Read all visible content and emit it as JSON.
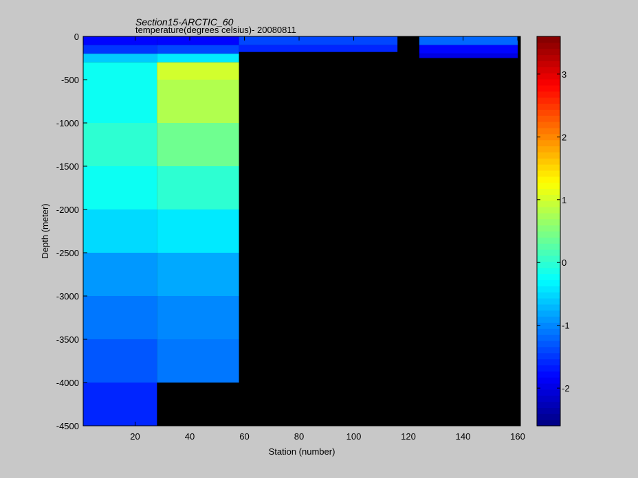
{
  "chart_data": {
    "type": "heatmap",
    "title": "Section15-ARCTIC_60",
    "subtitle": "temperature(degrees  celsius)- 20080811",
    "xlabel": "Station (number)",
    "ylabel": "Depth (meter)",
    "xlim": [
      1,
      161
    ],
    "ylim": [
      -4500,
      0
    ],
    "x_ticks": [
      "20",
      "40",
      "60",
      "80",
      "100",
      "120",
      "140",
      "160"
    ],
    "y_ticks": [
      "0",
      "-500",
      "-1000",
      "-1500",
      "-2000",
      "-2500",
      "-3000",
      "-3500",
      "-4000",
      "-4500"
    ],
    "colorbar": {
      "range": [
        -2.6,
        3.6
      ],
      "ticks": [
        "-2",
        "-1",
        "0",
        "1",
        "2",
        "3"
      ],
      "colormap": "jet"
    },
    "land_mask_color": "#000000",
    "temperature_by_depth_station_band": {
      "depth_levels_m": [
        0,
        100,
        200,
        300,
        500,
        1000,
        1500,
        2000,
        2500,
        3000,
        3500,
        4000
      ],
      "stations_1_28": [
        -1.8,
        -1.5,
        -0.6,
        -0.2,
        -0.2,
        0.0,
        -0.2,
        -0.5,
        -0.9,
        -1.1,
        -1.3,
        -1.6
      ],
      "stations_28_58": [
        -1.8,
        -1.4,
        -0.4,
        1.0,
        0.8,
        0.4,
        0.0,
        -0.4,
        -0.8,
        -1.0,
        -1.1,
        null
      ],
      "stations_58_116": [
        -1.4,
        -1.6,
        null,
        null,
        null,
        null,
        null,
        null,
        null,
        null,
        null,
        null
      ],
      "stations_124_160": [
        -1.2,
        -1.8,
        -2.0,
        null,
        null,
        null,
        null,
        null,
        null,
        null,
        null,
        null
      ]
    },
    "grid": false,
    "legend": "colorbar-right"
  }
}
